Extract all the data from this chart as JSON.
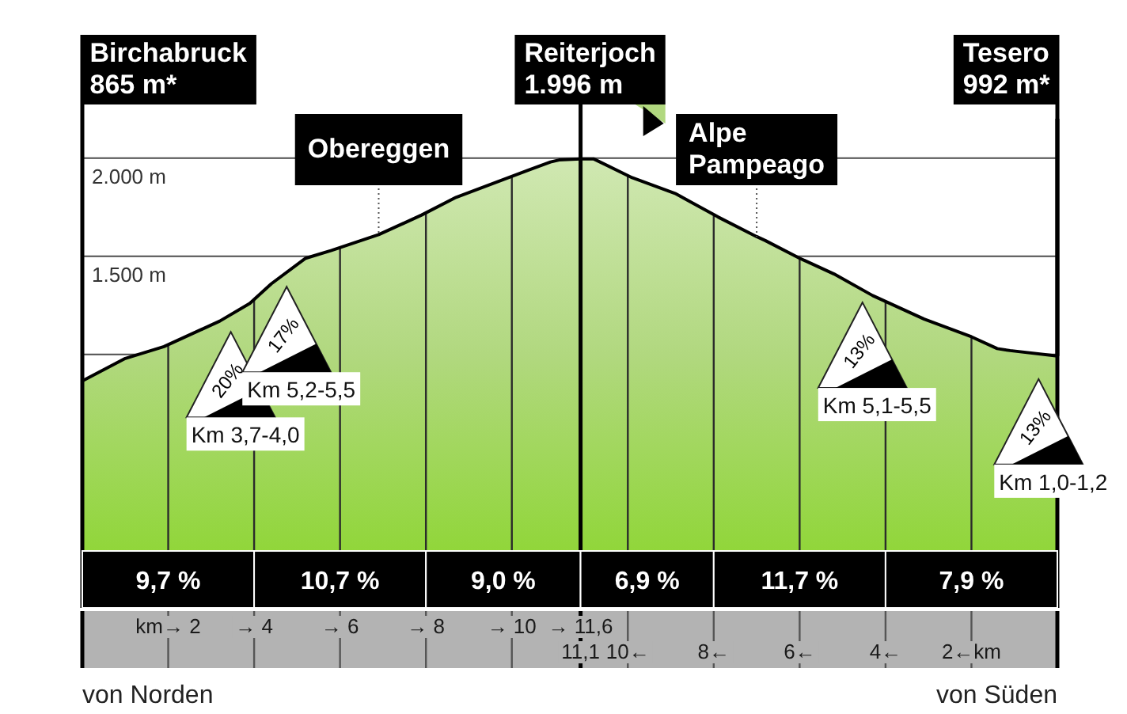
{
  "chart_data": {
    "type": "area",
    "x": [
      0,
      1.0,
      1.9,
      3.2,
      3.9,
      4.4,
      5.2,
      5.8,
      6.9,
      7.9,
      8.7,
      9.8,
      10.4,
      10.9,
      11.1,
      11.6,
      11.9,
      12.8,
      13.8,
      14.8,
      15.7,
      15.9,
      16.7,
      17.5,
      18.4,
      19.6,
      20.7,
      21.3,
      21.6,
      22.7
    ],
    "series": [
      {
        "color": "#b1d87f",
        "values": [
          865,
          980,
          1040,
          1170,
          1260,
          1360,
          1490,
          1530,
          1610,
          1710,
          1800,
          1890,
          1940,
          1980,
          1990,
          1996,
          1996,
          1900,
          1820,
          1700,
          1600,
          1580,
          1490,
          1410,
          1300,
          1180,
          1090,
          1030,
          1020,
          992
        ]
      }
    ],
    "xlim": [
      0,
      22.7
    ],
    "xticks": [
      {
        "value": 2,
        "label": "km→ 2"
      },
      {
        "value": 4,
        "label": "→ 4"
      },
      {
        "value": 6,
        "label": "→ 6"
      },
      {
        "value": 8,
        "label": "→ 8"
      },
      {
        "value": 10,
        "label": "→ 10"
      },
      {
        "value": 11.6,
        "label": "→ 11,6"
      }
    ],
    "x2lim": [
      22.7,
      0
    ],
    "x2ticks": [
      {
        "value": 11.1,
        "label": "11,1"
      },
      {
        "value": 10,
        "label": "10←"
      },
      {
        "value": 8,
        "label": "8←"
      },
      {
        "value": 6,
        "label": "6←"
      },
      {
        "value": 4,
        "label": "4←"
      },
      {
        "value": 2,
        "label": "2←km"
      }
    ],
    "xlabel": "von Norden",
    "x2label": "von Süden",
    "ylim": [
      -290,
      2200
    ],
    "yticks": [
      {
        "value": 1000,
        "label": null
      },
      {
        "value": 1500,
        "label": "1.500 m"
      },
      {
        "value": 2000,
        "label": "2.000 m"
      }
    ],
    "grid": true,
    "ref_lines": [
      {
        "axis": "x",
        "value": 11.6,
        "label": "Reiterjoch\n1.996 m"
      }
    ],
    "bands": [
      {
        "axis": "x",
        "from": 0,
        "to": 4,
        "label": "9,7 %",
        "color": "#000000"
      },
      {
        "axis": "x",
        "from": 4,
        "to": 8,
        "label": "10,7 %",
        "color": "#000000"
      },
      {
        "axis": "x",
        "from": 8,
        "to": 11.6,
        "label": "9,0 %",
        "color": "#000000"
      },
      {
        "axis": "x2",
        "from": 11.1,
        "to": 8,
        "label": "6,9 %",
        "color": "#000000"
      },
      {
        "axis": "x2",
        "from": 8,
        "to": 4,
        "label": "11,7 %",
        "color": "#000000"
      },
      {
        "axis": "x2",
        "from": 4,
        "to": 0,
        "label": "7,9 %",
        "color": "#000000"
      }
    ],
    "annotations": [
      "Birchabruck\n865 m*",
      {
        "text": "Tesero\n992 m*",
        "x": 22.7,
        "y": 992
      },
      {
        "text": "Obereggen",
        "x": 6.9,
        "y": 1610
      },
      {
        "text": "Alpe Pampeago",
        "x": 15.7,
        "y": 1600
      },
      {
        "text": "20%\nKm 3,7-4,0",
        "x": 3.9,
        "y": 1260
      },
      {
        "text": "17%\nKm 5,2-5,5",
        "x": 5.2,
        "y": 1490
      },
      {
        "text": "13%\nKm 5,1-5,5",
        "x": 17.5,
        "y": 1410
      },
      {
        "text": "13%\nKm 1,0-1,2",
        "x": 21.6,
        "y": 1020
      }
    ]
  }
}
